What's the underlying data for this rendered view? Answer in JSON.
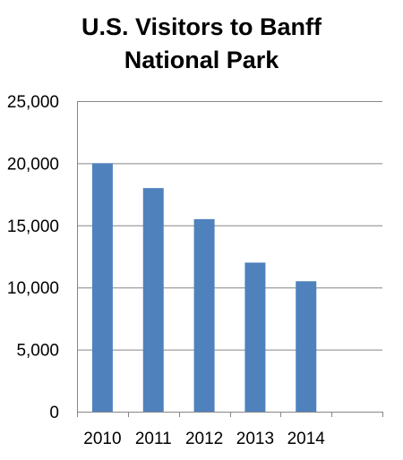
{
  "chart_data": {
    "type": "bar",
    "title_lines": [
      "U.S. Visitors to Banff",
      "National Park"
    ],
    "categories": [
      "2010",
      "2011",
      "2012",
      "2013",
      "2014"
    ],
    "values": [
      20000,
      18000,
      15500,
      12000,
      10500
    ],
    "y_ticks": [
      "0",
      "5,000",
      "10,000",
      "15,000",
      "20,000",
      "25,000"
    ],
    "y_tick_values": [
      0,
      5000,
      10000,
      15000,
      20000,
      25000
    ],
    "xlabel": "",
    "ylabel": "",
    "ylim": [
      0,
      25000
    ],
    "category_slots": 6,
    "grid": true,
    "legend": "none",
    "bar_color": "#4F81BD",
    "grid_color": "#868686",
    "axis_color": "#868686"
  }
}
